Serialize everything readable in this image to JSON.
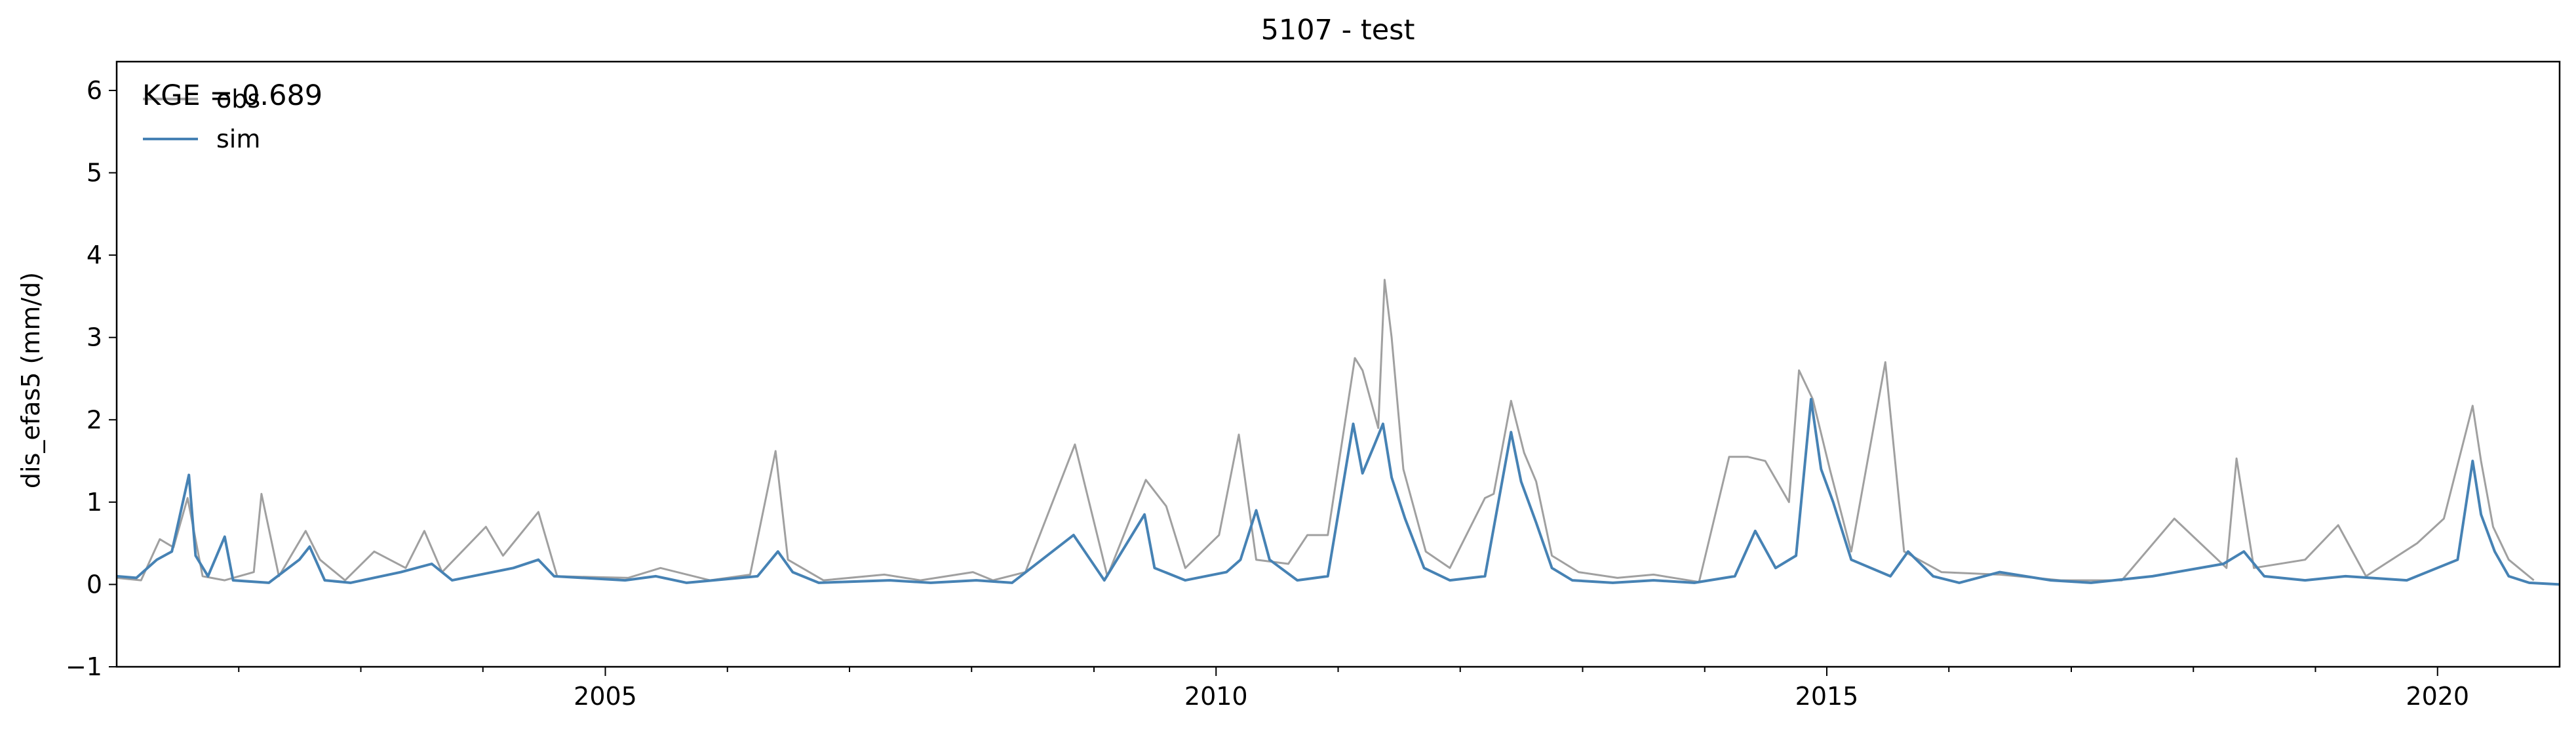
{
  "chart_data": {
    "type": "line",
    "title": "5107 - test",
    "xlabel": "",
    "ylabel": "dis_efas5 (mm/d)",
    "xlim": [
      "2001-01-01",
      "2020-12-31"
    ],
    "ylim": [
      -1,
      6.35
    ],
    "x_major_ticks": [
      "2005",
      "2010",
      "2015",
      "2020"
    ],
    "y_ticks": [
      -1,
      0,
      1,
      2,
      3,
      4,
      5,
      6
    ],
    "annotation": "KGE = 0.689",
    "legend": {
      "placement": "top-left",
      "entries": [
        "obs",
        "sim"
      ]
    },
    "series": [
      {
        "name": "obs",
        "color": "#a0a0a0",
        "points": [
          [
            "2001-01-01",
            0.08
          ],
          [
            "2001-03-15",
            0.05
          ],
          [
            "2001-05-10",
            0.55
          ],
          [
            "2001-06-20",
            0.45
          ],
          [
            "2001-08-01",
            1.05
          ],
          [
            "2001-09-15",
            0.1
          ],
          [
            "2001-11-20",
            0.05
          ],
          [
            "2002-02-15",
            0.15
          ],
          [
            "2002-03-10",
            1.1
          ],
          [
            "2002-05-01",
            0.1
          ],
          [
            "2002-07-20",
            0.65
          ],
          [
            "2002-09-01",
            0.3
          ],
          [
            "2002-11-15",
            0.05
          ],
          [
            "2003-02-10",
            0.4
          ],
          [
            "2003-05-15",
            0.2
          ],
          [
            "2003-07-10",
            0.65
          ],
          [
            "2003-09-01",
            0.15
          ],
          [
            "2004-01-10",
            0.7
          ],
          [
            "2004-03-01",
            0.35
          ],
          [
            "2004-06-15",
            0.88
          ],
          [
            "2004-08-10",
            0.1
          ],
          [
            "2005-03-10",
            0.08
          ],
          [
            "2005-06-15",
            0.2
          ],
          [
            "2005-11-10",
            0.05
          ],
          [
            "2006-03-10",
            0.12
          ],
          [
            "2006-05-25",
            1.62
          ],
          [
            "2006-07-01",
            0.3
          ],
          [
            "2006-10-15",
            0.05
          ],
          [
            "2007-04-15",
            0.12
          ],
          [
            "2007-08-01",
            0.05
          ],
          [
            "2008-01-05",
            0.15
          ],
          [
            "2008-03-05",
            0.05
          ],
          [
            "2008-06-10",
            0.15
          ],
          [
            "2008-11-05",
            1.7
          ],
          [
            "2009-02-10",
            0.1
          ],
          [
            "2009-06-05",
            1.27
          ],
          [
            "2009-08-05",
            0.95
          ],
          [
            "2009-10-01",
            0.2
          ],
          [
            "2010-01-10",
            0.6
          ],
          [
            "2010-03-10",
            1.82
          ],
          [
            "2010-05-01",
            0.3
          ],
          [
            "2010-08-05",
            0.25
          ],
          [
            "2010-10-01",
            0.6
          ],
          [
            "2010-12-01",
            0.6
          ],
          [
            "2011-02-20",
            2.75
          ],
          [
            "2011-03-15",
            2.6
          ],
          [
            "2011-05-01",
            1.9
          ],
          [
            "2011-05-20",
            3.7
          ],
          [
            "2011-06-10",
            3.0
          ],
          [
            "2011-07-15",
            1.4
          ],
          [
            "2011-09-20",
            0.4
          ],
          [
            "2011-12-01",
            0.2
          ],
          [
            "2012-03-15",
            1.05
          ],
          [
            "2012-04-10",
            1.1
          ],
          [
            "2012-06-01",
            2.23
          ],
          [
            "2012-07-10",
            1.6
          ],
          [
            "2012-08-15",
            1.25
          ],
          [
            "2012-10-01",
            0.35
          ],
          [
            "2012-12-20",
            0.15
          ],
          [
            "2013-04-15",
            0.08
          ],
          [
            "2013-08-01",
            0.12
          ],
          [
            "2013-12-15",
            0.03
          ],
          [
            "2014-03-15",
            1.55
          ],
          [
            "2014-05-10",
            1.55
          ],
          [
            "2014-07-01",
            1.5
          ],
          [
            "2014-09-10",
            1.0
          ],
          [
            "2014-10-10",
            2.6
          ],
          [
            "2014-11-20",
            2.25
          ],
          [
            "2015-01-10",
            1.4
          ],
          [
            "2015-03-15",
            0.4
          ],
          [
            "2015-06-25",
            2.7
          ],
          [
            "2015-08-20",
            0.4
          ],
          [
            "2015-12-10",
            0.15
          ],
          [
            "2016-06-01",
            0.12
          ],
          [
            "2016-12-01",
            0.05
          ],
          [
            "2017-06-01",
            0.05
          ],
          [
            "2017-11-05",
            0.8
          ],
          [
            "2018-04-10",
            0.2
          ],
          [
            "2018-05-10",
            1.53
          ],
          [
            "2018-07-01",
            0.2
          ],
          [
            "2018-12-01",
            0.3
          ],
          [
            "2019-03-10",
            0.72
          ],
          [
            "2019-06-01",
            0.1
          ],
          [
            "2019-11-01",
            0.5
          ],
          [
            "2020-01-20",
            0.8
          ],
          [
            "2020-04-15",
            2.17
          ],
          [
            "2020-05-10",
            1.5
          ],
          [
            "2020-06-15",
            0.7
          ],
          [
            "2020-08-01",
            0.3
          ],
          [
            "2020-10-15",
            0.05
          ]
        ]
      },
      {
        "name": "sim",
        "color": "#4682b4",
        "points": [
          [
            "2001-01-01",
            0.1
          ],
          [
            "2001-03-01",
            0.08
          ],
          [
            "2001-05-01",
            0.3
          ],
          [
            "2001-06-15",
            0.4
          ],
          [
            "2001-08-05",
            1.33
          ],
          [
            "2001-08-25",
            0.35
          ],
          [
            "2001-10-01",
            0.1
          ],
          [
            "2001-11-20",
            0.58
          ],
          [
            "2001-12-15",
            0.05
          ],
          [
            "2002-04-01",
            0.02
          ],
          [
            "2002-07-01",
            0.3
          ],
          [
            "2002-08-01",
            0.46
          ],
          [
            "2002-09-15",
            0.05
          ],
          [
            "2002-12-01",
            0.02
          ],
          [
            "2003-05-01",
            0.15
          ],
          [
            "2003-08-01",
            0.25
          ],
          [
            "2003-10-01",
            0.05
          ],
          [
            "2004-04-01",
            0.2
          ],
          [
            "2004-06-15",
            0.3
          ],
          [
            "2004-08-01",
            0.1
          ],
          [
            "2005-03-01",
            0.05
          ],
          [
            "2005-06-01",
            0.1
          ],
          [
            "2005-09-01",
            0.02
          ],
          [
            "2006-04-01",
            0.1
          ],
          [
            "2006-06-01",
            0.4
          ],
          [
            "2006-07-15",
            0.15
          ],
          [
            "2006-10-01",
            0.02
          ],
          [
            "2007-05-01",
            0.05
          ],
          [
            "2007-09-01",
            0.02
          ],
          [
            "2008-01-15",
            0.05
          ],
          [
            "2008-05-01",
            0.02
          ],
          [
            "2008-11-01",
            0.6
          ],
          [
            "2009-02-01",
            0.05
          ],
          [
            "2009-06-01",
            0.85
          ],
          [
            "2009-07-01",
            0.2
          ],
          [
            "2009-10-01",
            0.05
          ],
          [
            "2010-02-01",
            0.15
          ],
          [
            "2010-03-15",
            0.3
          ],
          [
            "2010-05-01",
            0.9
          ],
          [
            "2010-06-10",
            0.3
          ],
          [
            "2010-09-01",
            0.05
          ],
          [
            "2010-12-01",
            0.1
          ],
          [
            "2011-02-15",
            1.95
          ],
          [
            "2011-03-15",
            1.35
          ],
          [
            "2011-04-20",
            1.7
          ],
          [
            "2011-05-15",
            1.95
          ],
          [
            "2011-06-10",
            1.3
          ],
          [
            "2011-07-20",
            0.8
          ],
          [
            "2011-09-15",
            0.2
          ],
          [
            "2011-12-01",
            0.05
          ],
          [
            "2012-03-15",
            0.1
          ],
          [
            "2012-06-01",
            1.85
          ],
          [
            "2012-07-01",
            1.25
          ],
          [
            "2012-08-15",
            0.75
          ],
          [
            "2012-10-01",
            0.2
          ],
          [
            "2012-12-01",
            0.05
          ],
          [
            "2013-04-01",
            0.02
          ],
          [
            "2013-08-01",
            0.05
          ],
          [
            "2013-12-01",
            0.02
          ],
          [
            "2014-04-01",
            0.1
          ],
          [
            "2014-06-01",
            0.65
          ],
          [
            "2014-08-01",
            0.2
          ],
          [
            "2014-10-01",
            0.35
          ],
          [
            "2014-11-15",
            2.25
          ],
          [
            "2014-12-15",
            1.4
          ],
          [
            "2015-01-20",
            1.0
          ],
          [
            "2015-03-15",
            0.3
          ],
          [
            "2015-07-10",
            0.1
          ],
          [
            "2015-09-01",
            0.4
          ],
          [
            "2015-11-15",
            0.1
          ],
          [
            "2016-02-01",
            0.02
          ],
          [
            "2016-06-01",
            0.15
          ],
          [
            "2016-11-01",
            0.05
          ],
          [
            "2017-03-01",
            0.02
          ],
          [
            "2017-09-01",
            0.1
          ],
          [
            "2018-04-01",
            0.25
          ],
          [
            "2018-06-01",
            0.4
          ],
          [
            "2018-08-01",
            0.1
          ],
          [
            "2018-12-01",
            0.05
          ],
          [
            "2019-04-01",
            0.1
          ],
          [
            "2019-10-01",
            0.05
          ],
          [
            "2020-03-01",
            0.3
          ],
          [
            "2020-04-15",
            1.5
          ],
          [
            "2020-05-10",
            0.85
          ],
          [
            "2020-06-20",
            0.4
          ],
          [
            "2020-08-01",
            0.1
          ],
          [
            "2020-10-01",
            0.02
          ],
          [
            "2020-12-31",
            0.0
          ]
        ]
      }
    ]
  }
}
